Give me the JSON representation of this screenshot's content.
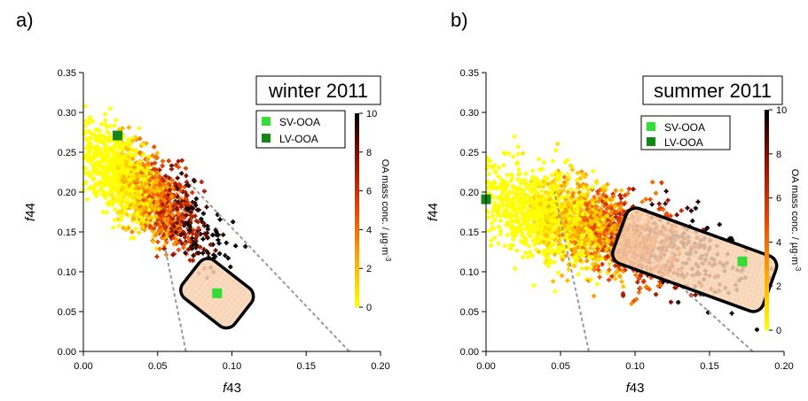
{
  "chart_data": [
    {
      "type": "scatter",
      "panel_label": "a)",
      "title": "winter 2011",
      "xlabel_italic": "f",
      "xlabel_rest": "43",
      "ylabel_italic": "f",
      "ylabel_rest": "44",
      "xlim": [
        0,
        0.2
      ],
      "ylim": [
        0,
        0.35
      ],
      "xticks": [
        "0.00",
        "0.05",
        "0.10",
        "0.15",
        "0.20"
      ],
      "yticks": [
        "0.00",
        "0.05",
        "0.10",
        "0.15",
        "0.20",
        "0.25",
        "0.30",
        "0.35"
      ],
      "xtick_values": [
        0,
        0.05,
        0.1,
        0.15,
        0.2
      ],
      "ytick_values": [
        0,
        0.05,
        0.1,
        0.15,
        0.2,
        0.25,
        0.3,
        0.35
      ],
      "colorbar": {
        "label": "OA mass conc. / µg·m",
        "exponent": "-3",
        "min": 0,
        "max": 10,
        "ticks": [
          "0",
          "2",
          "4",
          "6",
          "8",
          "10"
        ],
        "tick_values": [
          0,
          2,
          4,
          6,
          8,
          10
        ]
      },
      "legend": [
        {
          "label": "SV-OOA",
          "color": "#33dd33"
        },
        {
          "label": "LV-OOA",
          "color": "#118811"
        }
      ],
      "reference_points": [
        {
          "name": "SV-OOA",
          "x": 0.09,
          "y": 0.073,
          "color": "#33dd33"
        },
        {
          "name": "LV-OOA",
          "x": 0.023,
          "y": 0.271,
          "color": "#118811"
        }
      ],
      "triangle_lines": [
        {
          "from": [
            0.069,
            0.0
          ],
          "to": [
            0.055,
            0.13
          ]
        },
        {
          "from": [
            0.179,
            0.0
          ],
          "to": [
            0.072,
            0.21
          ]
        }
      ],
      "region_center": [
        0.09,
        0.073
      ],
      "cloud": {
        "x_center": 0.038,
        "y_center": 0.205,
        "x_spread": 0.022,
        "y_spread": 0.042,
        "slope": -1.2,
        "count": 1600,
        "seed": 11
      }
    },
    {
      "type": "scatter",
      "panel_label": "b)",
      "title": "summer 2011",
      "xlabel_italic": "f",
      "xlabel_rest": "43",
      "ylabel_italic": "f",
      "ylabel_rest": "44",
      "xlim": [
        0,
        0.2
      ],
      "ylim": [
        0,
        0.35
      ],
      "xticks": [
        "0.00",
        "0.05",
        "0.10",
        "0.15",
        "0.20"
      ],
      "yticks": [
        "0.00",
        "0.05",
        "0.10",
        "0.15",
        "0.20",
        "0.25",
        "0.30",
        "0.35"
      ],
      "xtick_values": [
        0,
        0.05,
        0.1,
        0.15,
        0.2
      ],
      "ytick_values": [
        0,
        0.05,
        0.1,
        0.15,
        0.2,
        0.25,
        0.3,
        0.35
      ],
      "colorbar": {
        "label": "OA mass conc. / µg·m",
        "exponent": "-3",
        "min": 0,
        "max": 10,
        "ticks": [
          "0",
          "2",
          "4",
          "6",
          "8",
          "10"
        ],
        "tick_values": [
          0,
          2,
          4,
          6,
          8,
          10
        ]
      },
      "legend": [
        {
          "label": "SV-OOA",
          "color": "#33dd33"
        },
        {
          "label": "LV-OOA",
          "color": "#118811"
        }
      ],
      "reference_points": [
        {
          "name": "SV-OOA",
          "x": 0.172,
          "y": 0.113,
          "color": "#33dd33"
        },
        {
          "name": "LV-OOA",
          "x": 0.0,
          "y": 0.191,
          "color": "#118811"
        }
      ],
      "triangle_lines": [
        {
          "from": [
            0.069,
            0.0
          ],
          "to": [
            0.046,
            0.2
          ]
        },
        {
          "from": [
            0.179,
            0.0
          ],
          "to": [
            0.108,
            0.12
          ]
        }
      ],
      "region_center": [
        0.14,
        0.115
      ],
      "cloud": {
        "x_center": 0.062,
        "y_center": 0.16,
        "x_spread": 0.04,
        "y_spread": 0.045,
        "slope": -0.55,
        "count": 2400,
        "seed": 29
      }
    }
  ]
}
